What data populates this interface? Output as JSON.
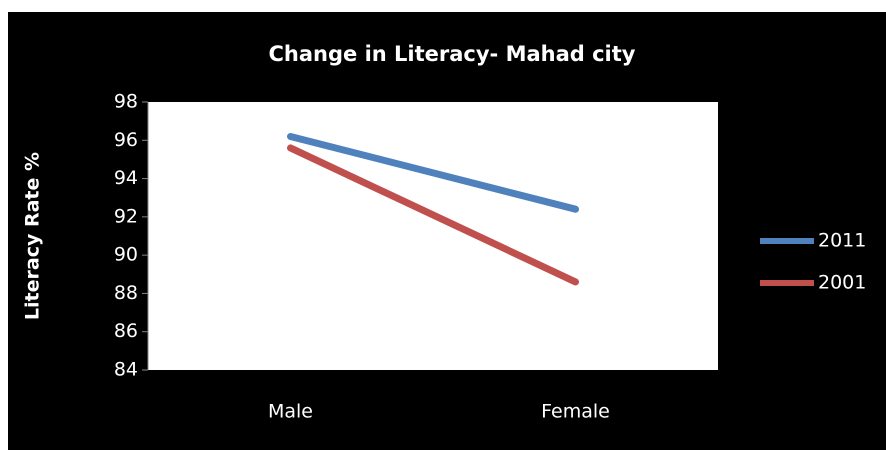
{
  "chart_data": {
    "type": "line",
    "title": "Change in Literacy- Mahad city",
    "y_label": "Literacy Rate %",
    "categories": [
      "Male",
      "Female"
    ],
    "series": [
      {
        "name": "2011",
        "color": "#4f81bd",
        "values": [
          96.2,
          92.4
        ]
      },
      {
        "name": "2001",
        "color": "#c0504d",
        "values": [
          95.6,
          88.6
        ]
      }
    ],
    "ylim": [
      84,
      98
    ],
    "yticks": [
      84,
      86,
      88,
      90,
      92,
      94,
      96,
      98
    ],
    "legend": "right"
  }
}
